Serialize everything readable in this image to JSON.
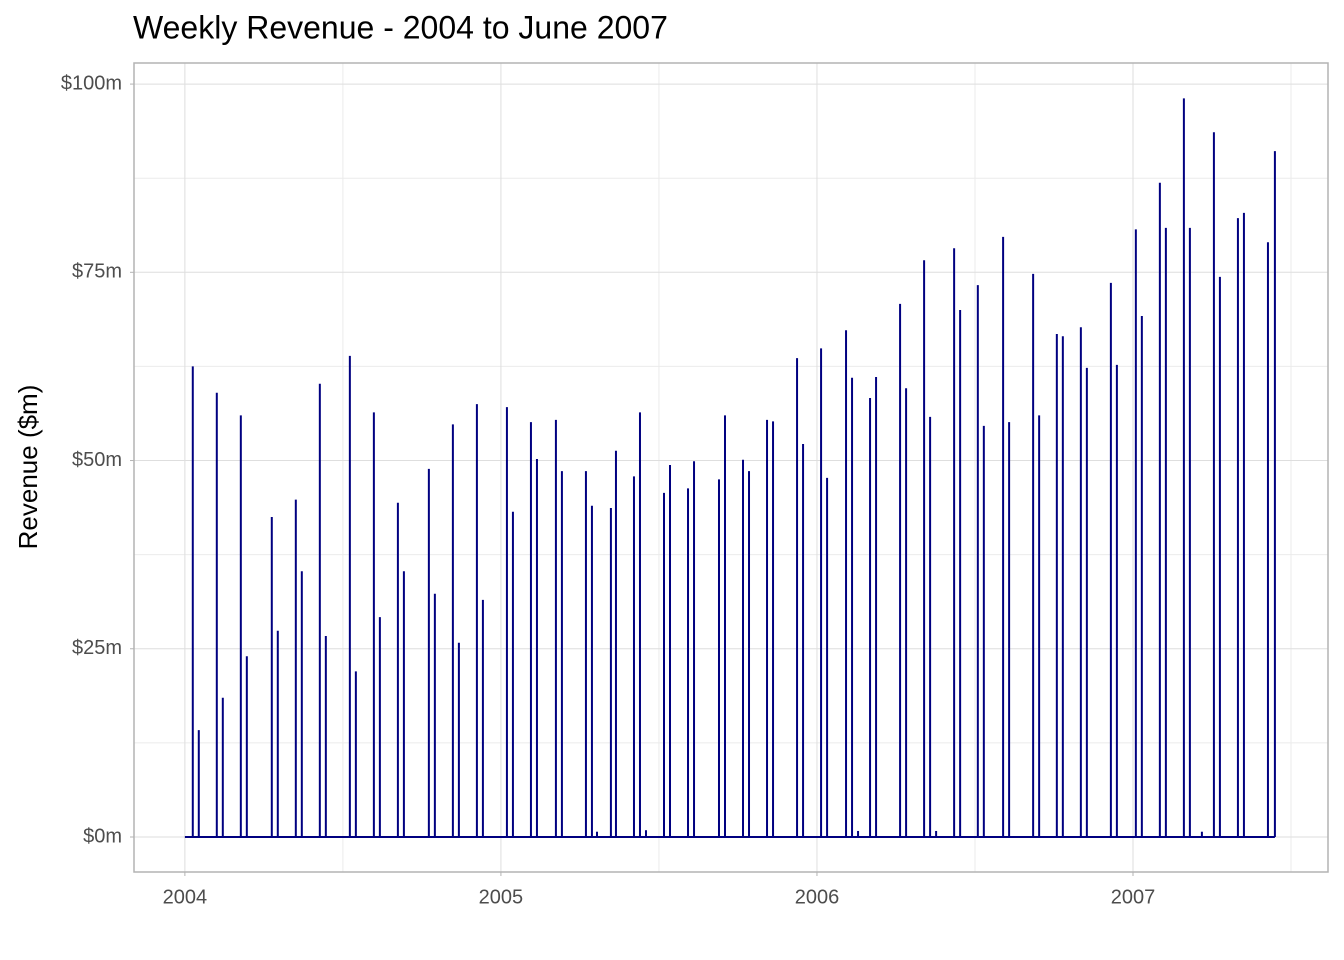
{
  "chart_data": {
    "type": "spike",
    "title": "Weekly Revenue - 2004 to June 2007",
    "y_label": "Revenue ($m)",
    "color": "#000080",
    "grid": true,
    "xlim": [
      2003.839,
      2007.617
    ],
    "xticks": [
      2004,
      2005,
      2006,
      2007
    ],
    "x_minor_grid": [
      2004.5,
      2005.5,
      2006.5,
      2007.5
    ],
    "ylim": [
      -4.65,
      102.8
    ],
    "yticks": [
      {
        "value": 0,
        "label": "$0m"
      },
      {
        "value": 25,
        "label": "$25m"
      },
      {
        "value": 50,
        "label": "$50m"
      },
      {
        "value": 75,
        "label": "$75m"
      },
      {
        "value": 100,
        "label": "$100m"
      }
    ],
    "y_minor_grid": [
      12.5,
      37.5,
      62.5,
      87.5
    ],
    "x": [
      2004.025,
      2004.044,
      2004.101,
      2004.12,
      2004.177,
      2004.196,
      2004.275,
      2004.294,
      2004.351,
      2004.37,
      2004.427,
      2004.446,
      2004.522,
      2004.541,
      2004.598,
      2004.617,
      2004.674,
      2004.693,
      2004.772,
      2004.791,
      2004.848,
      2004.867,
      2004.924,
      2004.943,
      2005.019,
      2005.038,
      2005.095,
      2005.114,
      2005.174,
      2005.193,
      2005.269,
      2005.288,
      2005.304,
      2005.348,
      2005.364,
      2005.421,
      2005.44,
      2005.459,
      2005.516,
      2005.535,
      2005.592,
      2005.611,
      2005.69,
      2005.709,
      2005.766,
      2005.785,
      2005.842,
      2005.861,
      2005.937,
      2005.956,
      2006.013,
      2006.032,
      2006.092,
      2006.111,
      2006.13,
      2006.168,
      2006.187,
      2006.263,
      2006.282,
      2006.339,
      2006.358,
      2006.377,
      2006.434,
      2006.453,
      2006.509,
      2006.528,
      2006.589,
      2006.608,
      2006.684,
      2006.703,
      2006.759,
      2006.778,
      2006.835,
      2006.854,
      2006.93,
      2006.949,
      2007.009,
      2007.028,
      2007.085,
      2007.104,
      2007.161,
      2007.18,
      2007.218,
      2007.256,
      2007.275,
      2007.332,
      2007.351,
      2007.427,
      2007.449
    ],
    "values": [
      62.5,
      14.2,
      59,
      18.5,
      56,
      24,
      42.5,
      27.4,
      44.8,
      35.3,
      60.2,
      26.7,
      63.9,
      22,
      56.4,
      29.2,
      44.4,
      35.3,
      48.9,
      32.3,
      54.8,
      25.8,
      57.5,
      31.5,
      57.1,
      43.2,
      55.1,
      50.2,
      55.4,
      48.6,
      48.6,
      44,
      0.7,
      43.7,
      51.3,
      47.9,
      56.4,
      0.9,
      45.7,
      49.4,
      46.3,
      49.9,
      47.5,
      56,
      50.1,
      48.6,
      55.4,
      55.2,
      63.6,
      52.2,
      64.9,
      47.7,
      67.3,
      61,
      0.8,
      58.3,
      61.1,
      70.8,
      59.6,
      76.6,
      55.8,
      0.8,
      78.2,
      70,
      73.3,
      54.6,
      79.7,
      55.1,
      74.8,
      56,
      66.8,
      66.5,
      67.7,
      62.3,
      73.6,
      62.7,
      80.7,
      69.2,
      86.9,
      80.9,
      98.1,
      80.9,
      0.7,
      93.6,
      74.4,
      82.2,
      82.9,
      79,
      91.1
    ]
  }
}
